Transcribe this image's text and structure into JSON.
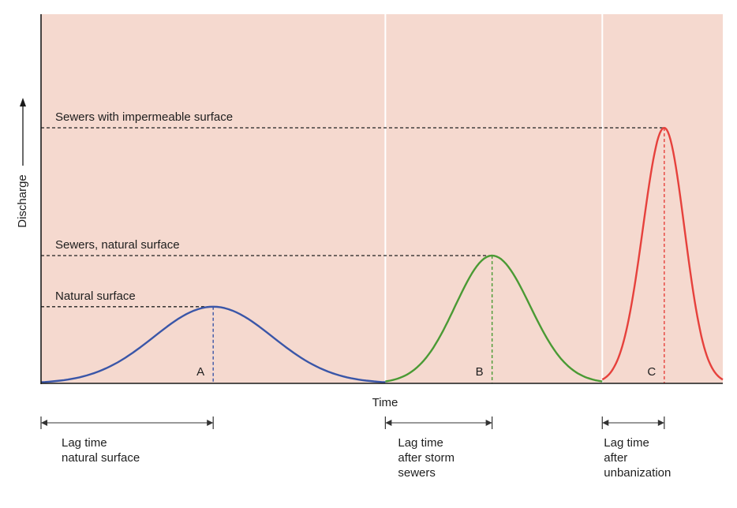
{
  "chart_data": {
    "type": "line",
    "title": "",
    "xlabel": "Time",
    "ylabel": "Discharge",
    "ylim": [
      0,
      100
    ],
    "grid": false,
    "colors": {
      "background": "#f5d9cf",
      "divider": "#ffffff",
      "A": "#3a56a8",
      "B": "#4a9a34",
      "C": "#e6413c"
    },
    "series": [
      {
        "name": "Natural surface",
        "peak_marker": "A",
        "start": 0,
        "peak_time": 50,
        "end": 100,
        "peak": 30
      },
      {
        "name": "Sewers, natural surface",
        "peak_marker": "B",
        "start": 100,
        "peak_time": 131,
        "end": 163,
        "peak": 50
      },
      {
        "name": "Sewers with impermeable surface",
        "peak_marker": "C",
        "start": 163,
        "peak_time": 181,
        "end": 198,
        "peak": 100
      }
    ],
    "lag_times": [
      {
        "lines": [
          "Lag time",
          "natural surface"
        ],
        "from": 0,
        "to": 50
      },
      {
        "lines": [
          "Lag time",
          "after storm",
          "sewers"
        ],
        "from": 100,
        "to": 131
      },
      {
        "lines": [
          "Lag time",
          "after",
          "unbanization"
        ],
        "from": 163,
        "to": 181
      }
    ]
  }
}
